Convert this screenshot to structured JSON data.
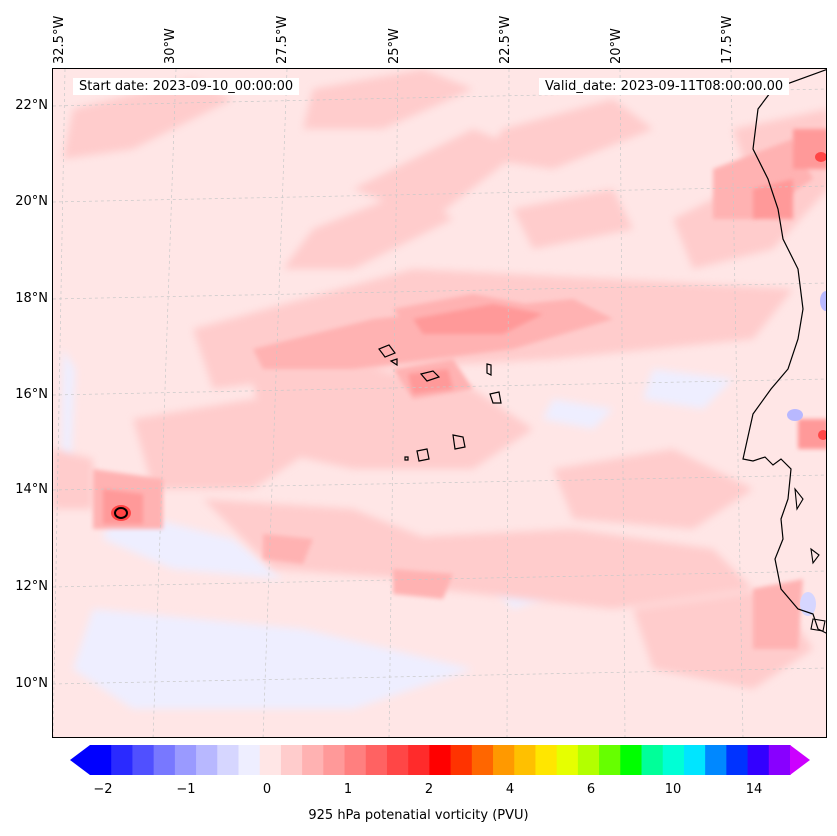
{
  "map": {
    "start_label": "Start date: 2023-09-10_00:00:00",
    "valid_label": "Valid_date: 2023-09-11T08:00:00.00",
    "lon_labels": [
      "32.5°W",
      "30°W",
      "27.5°W",
      "25°W",
      "22.5°W",
      "20°W",
      "17.5°W"
    ],
    "lat_labels": [
      "22°N",
      "20°N",
      "18°N",
      "16°N",
      "14°N",
      "12°N",
      "10°N"
    ],
    "variable": "925 hPa potential vorticity (PVU)",
    "colorbar": {
      "label": "925 hPa potenatial vorticity (PVU)",
      "ticks": [
        "−2",
        "−1",
        "0",
        "1",
        "2",
        "4",
        "6",
        "10",
        "14"
      ],
      "colors": [
        "#0000ff",
        "#2a2aff",
        "#5050ff",
        "#7878ff",
        "#9a9aff",
        "#b8b8ff",
        "#d6d6ff",
        "#eeeeff",
        "#ffe6e6",
        "#ffcccc",
        "#ffb2b2",
        "#ff9999",
        "#ff7f7f",
        "#ff6262",
        "#ff4646",
        "#ff2b2b",
        "#ff0000",
        "#ff3300",
        "#ff6600",
        "#ff9900",
        "#ffc000",
        "#ffe600",
        "#e6ff00",
        "#b3ff00",
        "#66ff00",
        "#00ff00",
        "#00ff99",
        "#00ffd5",
        "#00e5ff",
        "#0088ff",
        "#0033ff",
        "#3300ff",
        "#8800ff"
      ],
      "extend_low": "#0000ff",
      "extend_high": "#cc00ff"
    }
  }
}
